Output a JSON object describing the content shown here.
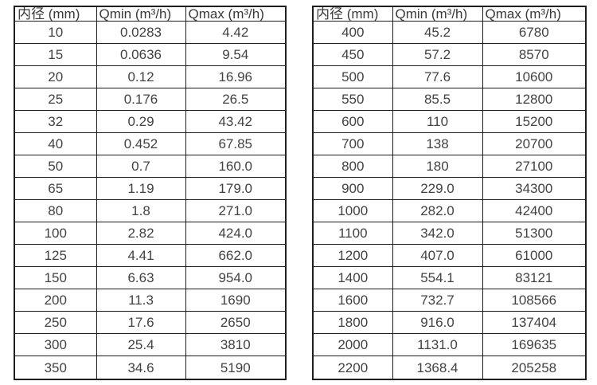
{
  "colors": {
    "background": "#ffffff",
    "border": "#1f1f1f",
    "text": "#3f3f3f"
  },
  "tables": [
    {
      "name": "small-diameter-flow-ranges",
      "headers": [
        "内径 (mm)",
        "Qmin (m³/h)",
        "Qmax (m³/h)"
      ],
      "rows": [
        [
          "10",
          "0.0283",
          "4.42"
        ],
        [
          "15",
          "0.0636",
          "9.54"
        ],
        [
          "20",
          "0.12",
          "16.96"
        ],
        [
          "25",
          "0.176",
          "26.5"
        ],
        [
          "32",
          "0.29",
          "43.42"
        ],
        [
          "40",
          "0.452",
          "67.85"
        ],
        [
          "50",
          "0.7",
          "160.0"
        ],
        [
          "65",
          "1.19",
          "179.0"
        ],
        [
          "80",
          "1.8",
          "271.0"
        ],
        [
          "100",
          "2.82",
          "424.0"
        ],
        [
          "125",
          "4.41",
          "662.0"
        ],
        [
          "150",
          "6.63",
          "954.0"
        ],
        [
          "200",
          "11.3",
          "1690"
        ],
        [
          "250",
          "17.6",
          "2650"
        ],
        [
          "300",
          "25.4",
          "3810"
        ],
        [
          "350",
          "34.6",
          "5190"
        ]
      ]
    },
    {
      "name": "large-diameter-flow-ranges",
      "headers": [
        "内径 (mm)",
        "Qmin (m³/h)",
        "Qmax (m³/h)"
      ],
      "rows": [
        [
          "400",
          "45.2",
          "6780"
        ],
        [
          "450",
          "57.2",
          "8570"
        ],
        [
          "500",
          "77.6",
          "10600"
        ],
        [
          "550",
          "85.5",
          "12800"
        ],
        [
          "600",
          "110",
          "15200"
        ],
        [
          "700",
          "138",
          "20700"
        ],
        [
          "800",
          "180",
          "27100"
        ],
        [
          "900",
          "229.0",
          "34300"
        ],
        [
          "1000",
          "282.0",
          "42400"
        ],
        [
          "1100",
          "342.0",
          "51300"
        ],
        [
          "1200",
          "407.0",
          "61000"
        ],
        [
          "1400",
          "554.1",
          "83121"
        ],
        [
          "1600",
          "732.7",
          "108566"
        ],
        [
          "1800",
          "916.0",
          "137404"
        ],
        [
          "2000",
          "1131.0",
          "169635"
        ],
        [
          "2200",
          "1368.4",
          "205258"
        ]
      ]
    }
  ]
}
